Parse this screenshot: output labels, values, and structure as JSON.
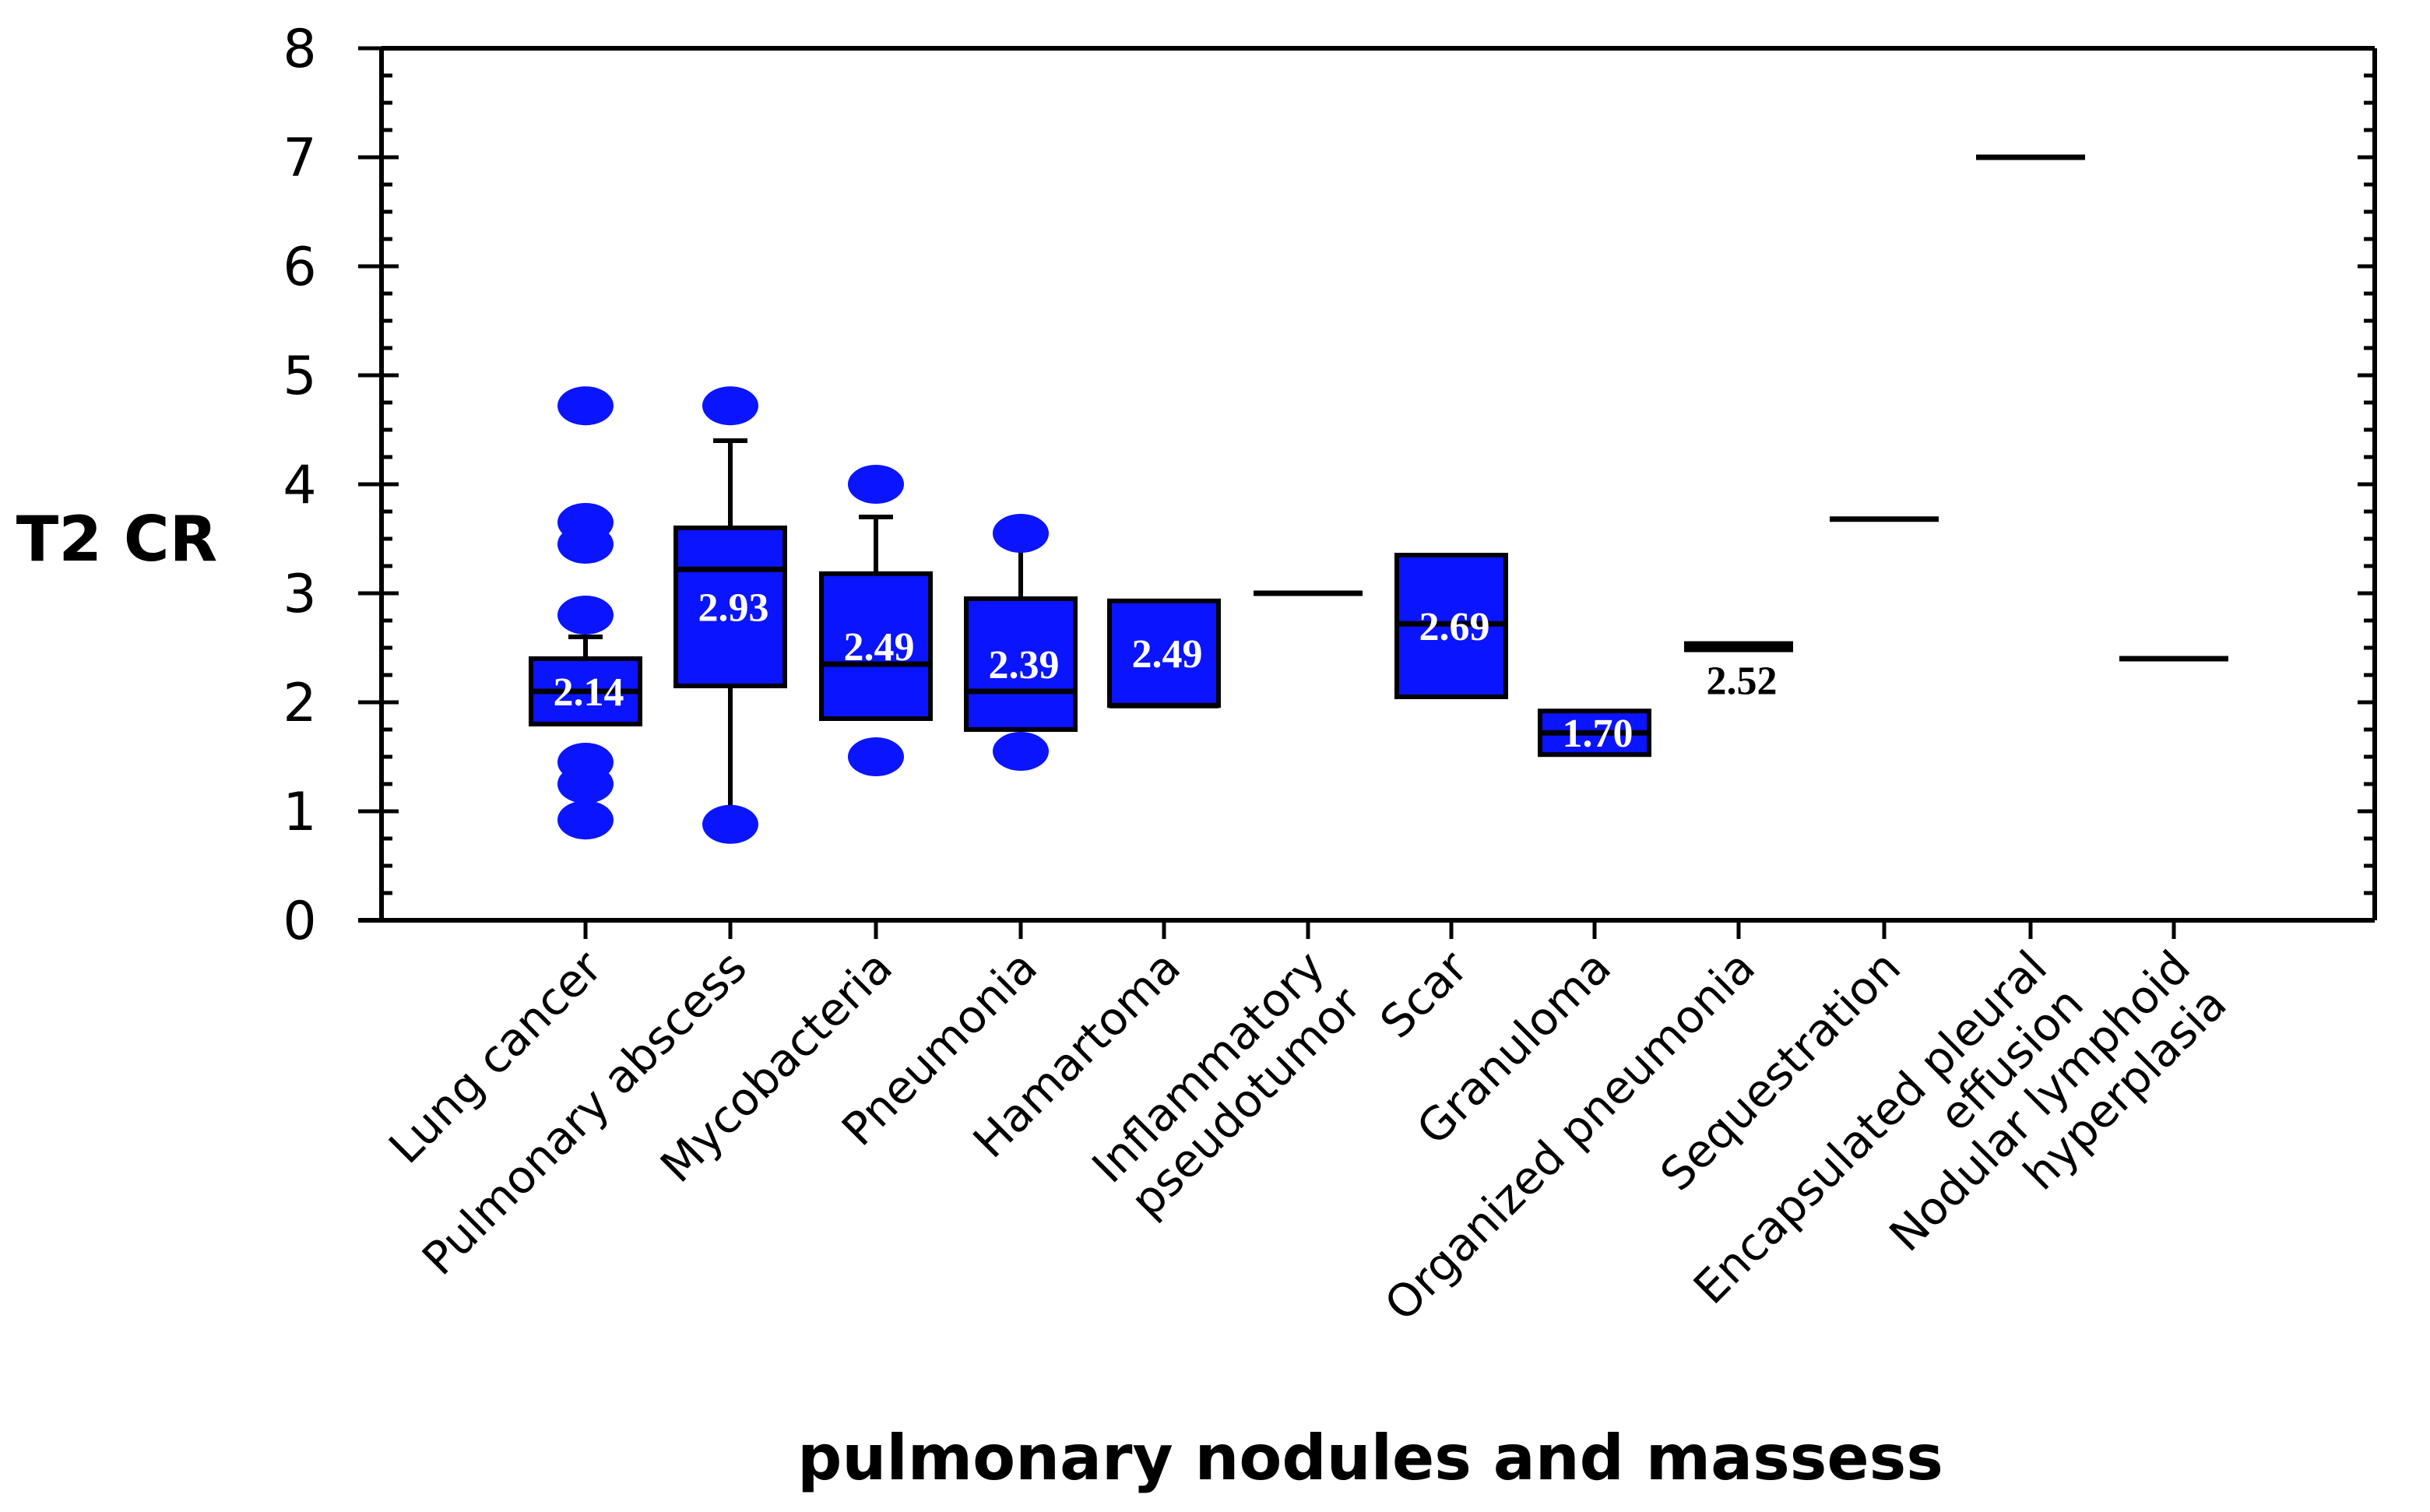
{
  "chart_data": {
    "type": "box",
    "ylabel": "T2 CR",
    "xlabel": "pulmonary nodules and massess",
    "ylim": [
      0,
      8
    ],
    "yticks": [
      "0",
      "1",
      "2",
      "3",
      "4",
      "5",
      "6",
      "7",
      "8"
    ],
    "series": [
      {
        "category": [
          "Lung cancer"
        ],
        "q1": 1.8,
        "median": 2.1,
        "q3": 2.4,
        "whisker_low": 1.8,
        "whisker_high": 2.6,
        "outliers": [
          4.72,
          3.65,
          3.45,
          2.8,
          1.45,
          1.25,
          0.92
        ],
        "mean_label": "2.14"
      },
      {
        "category": [
          "Pulmonary abscess"
        ],
        "q1": 2.15,
        "median": 3.22,
        "q3": 3.6,
        "whisker_low": 0.88,
        "whisker_high": 4.4,
        "outliers": [
          4.72,
          0.88
        ],
        "mean_label": "2.93"
      },
      {
        "category": [
          "Mycobacteria"
        ],
        "q1": 1.85,
        "median": 2.35,
        "q3": 3.18,
        "whisker_low": 1.85,
        "whisker_high": 3.7,
        "outliers": [
          4.0,
          1.5
        ],
        "mean_label": "2.49"
      },
      {
        "category": [
          "Pneumonia"
        ],
        "q1": 1.75,
        "median": 2.1,
        "q3": 2.95,
        "whisker_low": 1.75,
        "whisker_high": 3.55,
        "outliers": [
          3.55,
          1.55
        ],
        "mean_label": "2.39"
      },
      {
        "category": [
          "Hamartoma"
        ],
        "q1": 1.97,
        "median": 1.97,
        "q3": 2.93,
        "whisker_low": 1.97,
        "whisker_high": 2.93,
        "outliers": [],
        "mean_label": "2.49"
      },
      {
        "category": [
          "Inflammatory",
          "pseudotumor"
        ],
        "q1": 3.0,
        "median": 3.0,
        "q3": 3.0,
        "whisker_low": 3.0,
        "whisker_high": 3.0,
        "outliers": [],
        "mean_label": ""
      },
      {
        "category": [
          "Scar"
        ],
        "q1": 2.05,
        "median": 2.72,
        "q3": 3.35,
        "whisker_low": 2.05,
        "whisker_high": 3.35,
        "outliers": [],
        "mean_label": "2.69"
      },
      {
        "category": [
          "Granuloma"
        ],
        "q1": 1.52,
        "median": 1.72,
        "q3": 1.92,
        "whisker_low": 1.52,
        "whisker_high": 1.92,
        "outliers": [],
        "mean_label": "1.70"
      },
      {
        "category": [
          "Organized pneumonia"
        ],
        "q1": 2.46,
        "median": 2.52,
        "q3": 2.56,
        "whisker_low": 2.46,
        "whisker_high": 2.56,
        "outliers": [],
        "mean_label": "2.52"
      },
      {
        "category": [
          "Sequestration"
        ],
        "q1": 3.68,
        "median": 3.68,
        "q3": 3.68,
        "whisker_low": 3.68,
        "whisker_high": 3.68,
        "outliers": [],
        "mean_label": ""
      },
      {
        "category": [
          "Encapsulated pleural",
          "effusion"
        ],
        "q1": 7.0,
        "median": 7.0,
        "q3": 7.0,
        "whisker_low": 7.0,
        "whisker_high": 7.0,
        "outliers": [],
        "mean_label": ""
      },
      {
        "category": [
          "Nodular lymphoid",
          "hyperplasia"
        ],
        "q1": 2.4,
        "median": 2.4,
        "q3": 2.4,
        "whisker_low": 2.4,
        "whisker_high": 2.4,
        "outliers": [],
        "mean_label": ""
      }
    ]
  }
}
